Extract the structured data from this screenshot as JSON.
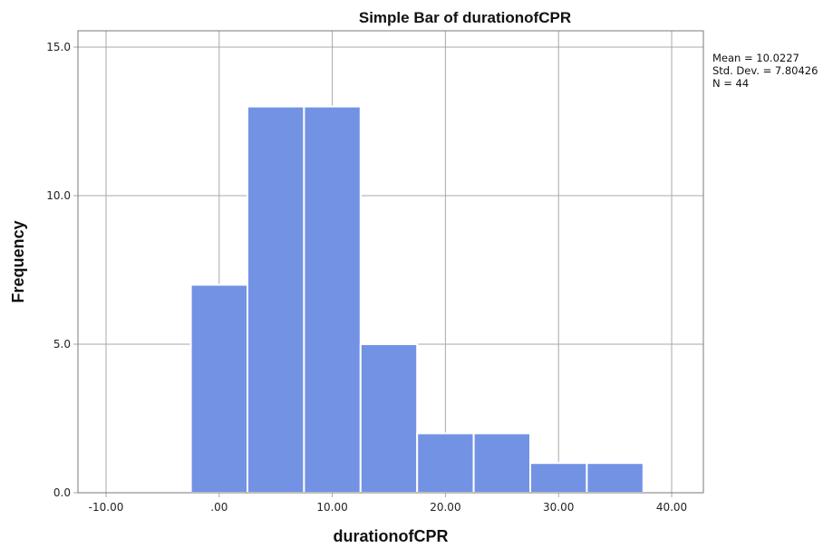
{
  "chart_data": {
    "type": "bar",
    "title": "Simple Bar of durationofCPR",
    "xlabel": "durationofCPR",
    "ylabel": "Frequency",
    "xlim": [
      -12.5,
      42.5
    ],
    "ylim": [
      0,
      16
    ],
    "x_ticks": [
      -10,
      0,
      10,
      20,
      30,
      40
    ],
    "x_tick_labels": [
      "-10.00",
      ".00",
      "10.00",
      "20.00",
      "30.00",
      "40.00"
    ],
    "y_ticks": [
      0,
      5,
      10,
      15
    ],
    "y_tick_labels": [
      "0.0",
      "5.0",
      "10.0",
      "15.0"
    ],
    "bin_width": 5,
    "bins": [
      {
        "start": -2.5,
        "end": 2.5,
        "value": 7
      },
      {
        "start": 2.5,
        "end": 7.5,
        "value": 13
      },
      {
        "start": 7.5,
        "end": 12.5,
        "value": 13
      },
      {
        "start": 12.5,
        "end": 17.5,
        "value": 5
      },
      {
        "start": 17.5,
        "end": 22.5,
        "value": 2
      },
      {
        "start": 22.5,
        "end": 27.5,
        "value": 2
      },
      {
        "start": 27.5,
        "end": 32.5,
        "value": 1
      },
      {
        "start": 32.5,
        "end": 37.5,
        "value": 1
      }
    ],
    "grid": true,
    "bar_color": "#7292e4",
    "stats": {
      "mean": "Mean = 10.0227",
      "std_dev": "Std. Dev. = 7.80426",
      "n": "N = 44"
    },
    "stats_placement": "top-right"
  }
}
